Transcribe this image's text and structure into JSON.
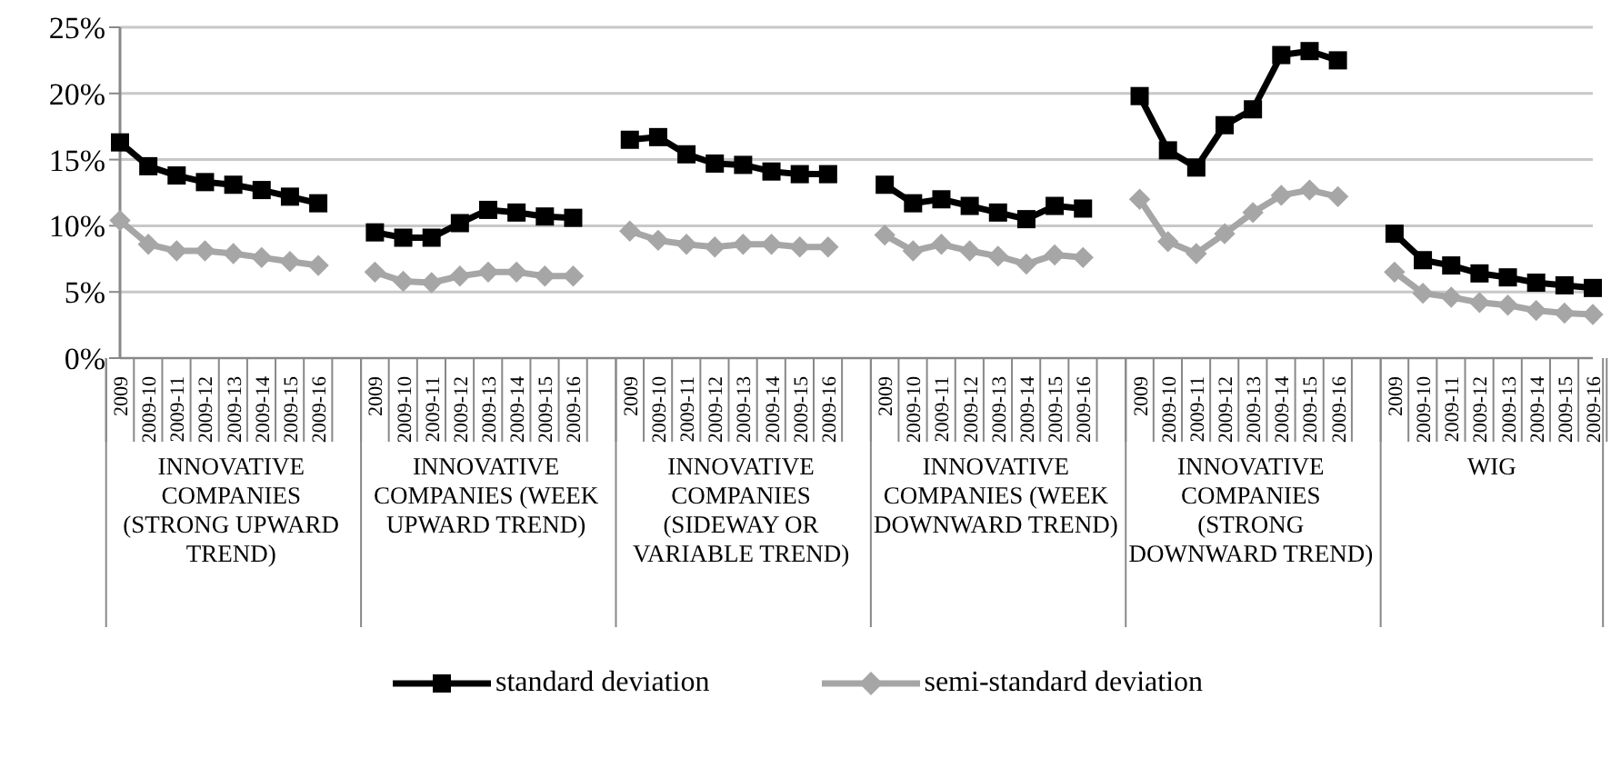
{
  "chart_data": {
    "type": "line",
    "categories": [
      "2009",
      "2009-10",
      "2009-11",
      "2009-12",
      "2009-13",
      "2009-14",
      "2009-15",
      "2009-16",
      null,
      "2009",
      "2009-10",
      "2009-11",
      "2009-12",
      "2009-13",
      "2009-14",
      "2009-15",
      "2009-16",
      null,
      "2009",
      "2009-10",
      "2009-11",
      "2009-12",
      "2009-13",
      "2009-14",
      "2009-15",
      "2009-16",
      null,
      "2009",
      "2009-10",
      "2009-11",
      "2009-12",
      "2009-13",
      "2009-14",
      "2009-15",
      "2009-16",
      null,
      "2009",
      "2009-10",
      "2009-11",
      "2009-12",
      "2009-13",
      "2009-14",
      "2009-15",
      "2009-16",
      null,
      "2009",
      "2009-10",
      "2009-11",
      "2009-12",
      "2009-13",
      "2009-14",
      "2009-15",
      "2009-16"
    ],
    "annotations": [
      "INNOVATIVE COMPANIES (STRONG UPWARD TREND)",
      "INNOVATIVE COMPANIES (WEEK UPWARD TREND)",
      "INNOVATIVE COMPANIES (SIDEWAY OR VARIABLE TREND)",
      "INNOVATIVE COMPANIES (WEEK DOWNWARD TREND)",
      "INNOVATIVE COMPANIES (STRONG DOWNWARD TREND)",
      "WIG"
    ],
    "series": [
      {
        "name": "standard deviation",
        "color": "#000000",
        "marker": "square",
        "values": [
          16.3,
          14.5,
          13.8,
          13.3,
          13.1,
          12.7,
          12.2,
          11.7,
          null,
          9.5,
          9.1,
          9.1,
          10.2,
          11.2,
          11.0,
          10.7,
          10.6,
          null,
          16.5,
          16.7,
          15.4,
          14.7,
          14.6,
          14.1,
          13.9,
          13.9,
          null,
          13.1,
          11.7,
          12.0,
          11.5,
          11.0,
          10.5,
          11.5,
          11.3,
          null,
          19.8,
          15.7,
          14.4,
          17.6,
          18.8,
          22.9,
          23.2,
          22.5,
          null,
          9.4,
          7.4,
          7.0,
          6.4,
          6.1,
          5.7,
          5.5,
          5.3
        ]
      },
      {
        "name": "semi-standard deviation",
        "color": "#a6a6a6",
        "marker": "diamond",
        "values": [
          10.4,
          8.6,
          8.1,
          8.1,
          7.9,
          7.6,
          7.3,
          7.0,
          null,
          6.5,
          5.8,
          5.7,
          6.2,
          6.5,
          6.5,
          6.2,
          6.2,
          null,
          9.6,
          8.9,
          8.6,
          8.4,
          8.6,
          8.6,
          8.4,
          8.4,
          null,
          9.3,
          8.1,
          8.6,
          8.1,
          7.7,
          7.1,
          7.8,
          7.6,
          null,
          12.0,
          8.8,
          7.9,
          9.4,
          11.0,
          12.3,
          12.7,
          12.2,
          null,
          6.5,
          4.9,
          4.6,
          4.2,
          4.0,
          3.6,
          3.4,
          3.3
        ]
      }
    ],
    "ylim": [
      0,
      25
    ],
    "yticks": [
      {
        "value": 0,
        "label": "0%"
      },
      {
        "value": 5,
        "label": "5%"
      },
      {
        "value": 10,
        "label": "10%"
      },
      {
        "value": 15,
        "label": "15%"
      },
      {
        "value": 20,
        "label": "20%"
      },
      {
        "value": 25,
        "label": "25%"
      }
    ],
    "grid": "y",
    "legend": "bottom",
    "line_style": "solid"
  }
}
